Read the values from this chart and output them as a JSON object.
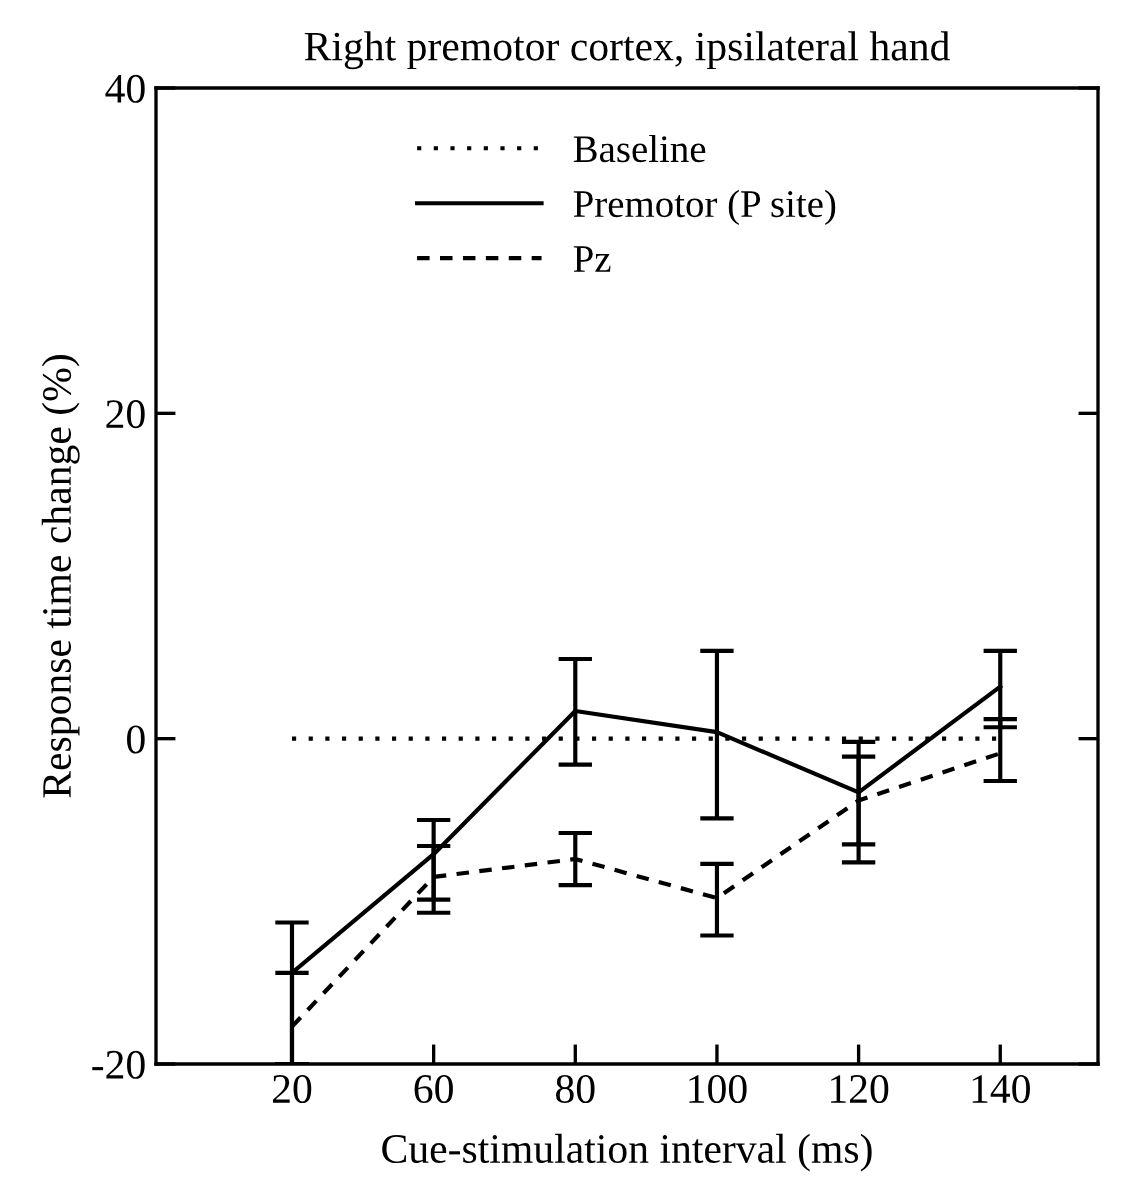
{
  "chart_data": {
    "type": "line",
    "title": "Right premotor cortex, ipsilateral hand",
    "xlabel": "Cue-stimulation interval (ms)",
    "ylabel": "Response time change (%)",
    "categories": [
      "20",
      "60",
      "80",
      "100",
      "120",
      "140"
    ],
    "series": [
      {
        "name": "Baseline",
        "color": "#000000",
        "line_style": "dotted",
        "values": [
          0,
          0,
          0,
          0,
          0,
          0
        ]
      },
      {
        "name": "Premotor (P site)",
        "color": "#000000",
        "line_style": "solid",
        "values": [
          -14.4,
          -7.1,
          1.7,
          0.4,
          -3.3,
          3.2
        ],
        "errors": [
          [
            -20,
            -11.3
          ],
          [
            -10.7,
            -5.0
          ],
          [
            -1.6,
            4.9
          ],
          [
            -4.9,
            5.4
          ],
          [
            -7.6,
            -0.2
          ],
          [
            0.7,
            5.4
          ]
        ]
      },
      {
        "name": "Pz",
        "color": "#000000",
        "line_style": "dashed",
        "values": [
          -17.7,
          -8.5,
          -7.4,
          -9.8,
          -3.8,
          -0.9
        ],
        "errors": [
          [
            -20,
            -14.4
          ],
          [
            -9.9,
            -6.6
          ],
          [
            -9.0,
            -5.8
          ],
          [
            -12.1,
            -7.7
          ],
          [
            -6.5,
            -1.1
          ],
          [
            -2.6,
            1.2
          ]
        ]
      }
    ],
    "ylim": [
      -20,
      40
    ],
    "yticks": [
      -20,
      0,
      20,
      40
    ],
    "grid": false,
    "legend": "top",
    "marker": "none"
  }
}
